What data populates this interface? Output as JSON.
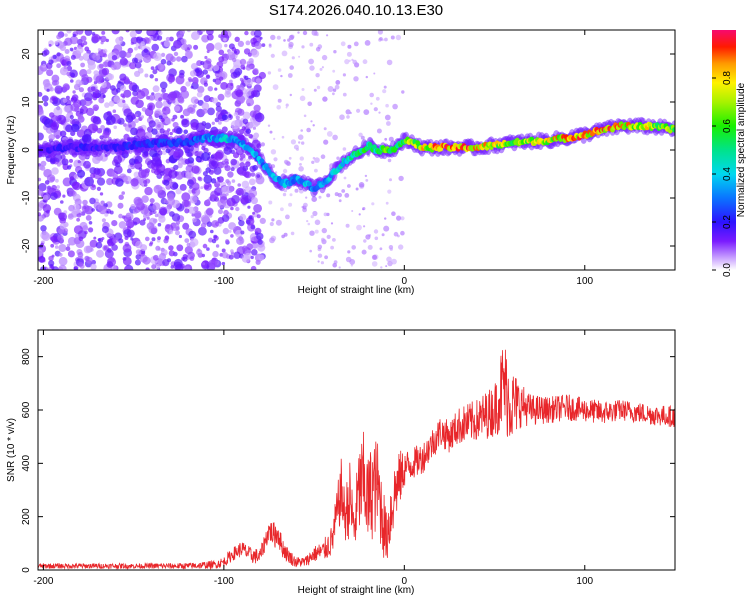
{
  "title": "S174.2026.040.10.13.E30",
  "chart_data": [
    {
      "type": "heatmap",
      "title": "S174.2026.040.10.13.E30",
      "xlabel": "Height of straight line (km)",
      "ylabel": "Frequency (Hz)",
      "xlim": [
        -203,
        150
      ],
      "ylim": [
        -25,
        25
      ],
      "xticks": [
        "-200",
        "-100",
        "0",
        "100"
      ],
      "yticks": [
        "20",
        "10",
        "0",
        "-10",
        "-20"
      ],
      "xtick_values": [
        -200,
        -100,
        0,
        100
      ],
      "ytick_values": [
        20,
        10,
        0,
        -10,
        -20
      ],
      "colorbar": {
        "label": "Normalized spectral amplitude",
        "range": [
          0,
          1
        ],
        "ticks": [
          "0.0",
          "0.2",
          "0.4",
          "0.6",
          "0.8"
        ],
        "tick_values": [
          0,
          0.2,
          0.4,
          0.6,
          0.8
        ]
      },
      "ridge": {
        "x": [
          -203,
          -190,
          -175,
          -160,
          -140,
          -120,
          -110,
          -100,
          -92,
          -85,
          -78,
          -72,
          -66,
          -60,
          -55,
          -50,
          -45,
          -40,
          -35,
          -30,
          -25,
          -20,
          -15,
          -10,
          -5,
          0,
          5,
          10,
          20,
          30,
          40,
          50,
          60,
          70,
          80,
          90,
          100,
          110,
          120,
          130,
          140,
          150
        ],
        "y": [
          0,
          0.5,
          0.5,
          0.5,
          1.5,
          1.5,
          2.5,
          2.5,
          2,
          0,
          -3,
          -6,
          -7,
          -6,
          -7,
          -8,
          -7,
          -5,
          -3,
          -1.5,
          -0.5,
          1,
          0,
          0,
          0.5,
          2,
          1.5,
          0.5,
          0.5,
          0.5,
          0.5,
          1,
          1.5,
          1.8,
          2,
          2.5,
          3.2,
          4.2,
          5,
          5,
          4.8,
          4.3
        ],
        "amplitude": [
          0.15,
          0.2,
          0.2,
          0.2,
          0.25,
          0.25,
          0.35,
          0.45,
          0.35,
          0.4,
          0.35,
          0.4,
          0.4,
          0.35,
          0.4,
          0.35,
          0.35,
          0.4,
          0.45,
          0.5,
          0.55,
          0.6,
          0.55,
          0.65,
          0.6,
          0.7,
          0.7,
          0.8,
          0.9,
          0.95,
          0.85,
          0.8,
          0.75,
          0.75,
          0.8,
          0.85,
          0.9,
          0.9,
          0.85,
          0.8,
          0.75,
          0.7
        ]
      }
    },
    {
      "type": "line",
      "xlabel": "Height of straight line (km)",
      "ylabel": "SNR (10 * v/v)",
      "xlim": [
        -203,
        150
      ],
      "ylim": [
        0,
        900
      ],
      "xticks": [
        "-200",
        "-100",
        "0",
        "100"
      ],
      "yticks": [
        "0",
        "200",
        "400",
        "600",
        "800"
      ],
      "xtick_values": [
        -200,
        -100,
        0,
        100
      ],
      "ytick_values": [
        0,
        200,
        400,
        600,
        800
      ],
      "series": [
        {
          "name": "SNR",
          "color": "#e8262a",
          "x": [
            -203,
            -180,
            -160,
            -140,
            -120,
            -105,
            -100,
            -95,
            -90,
            -85,
            -80,
            -75,
            -72,
            -70,
            -68,
            -65,
            -62,
            -60,
            -55,
            -50,
            -45,
            -40,
            -35,
            -33,
            -30,
            -28,
            -25,
            -22,
            -20,
            -18,
            -15,
            -12,
            -10,
            -8,
            -5,
            -2,
            0,
            5,
            10,
            15,
            20,
            25,
            30,
            40,
            50,
            55,
            58,
            60,
            65,
            70,
            80,
            90,
            100,
            110,
            120,
            130,
            140,
            150
          ],
          "y": [
            15,
            15,
            15,
            15,
            15,
            20,
            30,
            60,
            80,
            55,
            50,
            150,
            130,
            140,
            90,
            60,
            40,
            30,
            30,
            60,
            70,
            110,
            300,
            200,
            270,
            150,
            300,
            330,
            250,
            300,
            320,
            200,
            120,
            200,
            300,
            350,
            380,
            400,
            420,
            470,
            520,
            500,
            540,
            560,
            600,
            700,
            640,
            620,
            620,
            600,
            600,
            610,
            600,
            590,
            600,
            590,
            580,
            575
          ],
          "spread": [
            10,
            10,
            10,
            10,
            12,
            15,
            20,
            25,
            30,
            30,
            30,
            40,
            50,
            50,
            40,
            30,
            25,
            20,
            20,
            30,
            40,
            60,
            120,
            100,
            150,
            100,
            180,
            200,
            180,
            190,
            180,
            150,
            100,
            140,
            120,
            100,
            70,
            60,
            60,
            60,
            60,
            60,
            70,
            80,
            100,
            180,
            160,
            140,
            80,
            60,
            50,
            50,
            45,
            45,
            40,
            40,
            40,
            40
          ]
        }
      ]
    }
  ]
}
